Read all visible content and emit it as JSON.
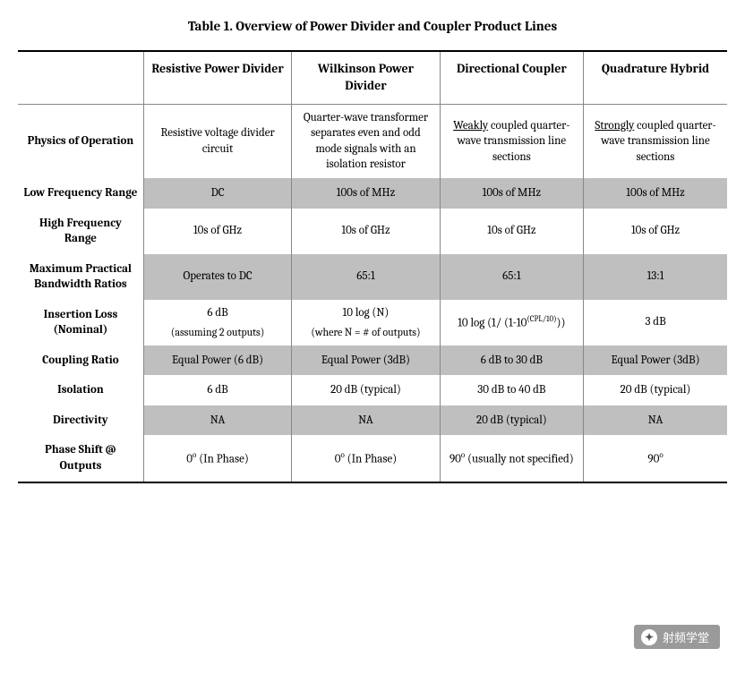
{
  "title": "Table 1. Overview of Power Divider and Coupler Product Lines",
  "columns": [
    "",
    "Resistive Power Divider",
    "Wilkinson Power Divider",
    "Directional Coupler",
    "Quadrature Hybrid"
  ],
  "rows": [
    {
      "label": "Physics of Operation",
      "band": "white",
      "cells": [
        {
          "text": "Resistive voltage divider circuit"
        },
        {
          "text": "Quarter-wave transformer separates even and odd mode signals with an isolation resistor"
        },
        {
          "html": "<span class='ul'>Weakly</span> coupled quarter-wave transmission line sections"
        },
        {
          "html": "<span class='ul'>Strongly</span> coupled quarter-wave transmission line sections"
        }
      ]
    },
    {
      "label": "Low Frequency Range",
      "band": "grey",
      "cells": [
        {
          "text": "DC"
        },
        {
          "text": "100s of MHz"
        },
        {
          "text": "100s of MHz"
        },
        {
          "text": "100s of MHz"
        }
      ]
    },
    {
      "label": "High Frequency Range",
      "band": "white",
      "cells": [
        {
          "text": "10s of GHz"
        },
        {
          "text": "10s of GHz"
        },
        {
          "text": "10s of GHz"
        },
        {
          "text": "10s of GHz"
        }
      ]
    },
    {
      "label": "Maximum Practical Bandwidth Ratios",
      "band": "grey",
      "cells": [
        {
          "text": "Operates to DC"
        },
        {
          "text": "65:1"
        },
        {
          "text": "65:1"
        },
        {
          "text": "13:1"
        }
      ]
    },
    {
      "label": "Insertion Loss (Nominal)",
      "band": "white",
      "cells": [
        {
          "html": "6 dB<span class='sub'>(assuming 2 outputs)</span>"
        },
        {
          "html": "10 log (N)<span class='sub'>(where N = # of outputs)</span>"
        },
        {
          "html": "10 log (1/ (1-10<sup>(CPL/10)</sup>))"
        },
        {
          "text": "3 dB"
        }
      ]
    },
    {
      "label": "Coupling Ratio",
      "band": "grey",
      "cells": [
        {
          "text": "Equal Power (6 dB)"
        },
        {
          "text": "Equal Power (3dB)"
        },
        {
          "text": "6 dB to 30 dB"
        },
        {
          "text": "Equal Power (3dB)"
        }
      ]
    },
    {
      "label": "Isolation",
      "band": "white",
      "cells": [
        {
          "text": "6 dB"
        },
        {
          "text": "20 dB (typical)"
        },
        {
          "text": "30 dB to 40 dB"
        },
        {
          "text": "20 dB (typical)"
        }
      ]
    },
    {
      "label": "Directivity",
      "band": "grey",
      "cells": [
        {
          "text": "NA"
        },
        {
          "text": "NA"
        },
        {
          "text": "20 dB (typical)"
        },
        {
          "text": "NA"
        }
      ]
    },
    {
      "label": "Phase Shift @ Outputs",
      "band": "white",
      "cells": [
        {
          "html": "0<sup>o</sup> (In Phase)"
        },
        {
          "html": "0<sup>o</sup> (In Phase)"
        },
        {
          "html": "90<sup>o</sup> (usually not specified)"
        },
        {
          "html": "90<sup>o</sup>"
        }
      ]
    }
  ],
  "watermark_text": "射频学堂",
  "colors": {
    "grey_band": "#bfbfbf",
    "border": "#888888",
    "rule": "#000000",
    "background": "#ffffff",
    "text": "#000000"
  },
  "font_family": "Cambria, Georgia, serif",
  "title_fontsize": 15,
  "header_fontsize": 14,
  "cell_fontsize": 13
}
